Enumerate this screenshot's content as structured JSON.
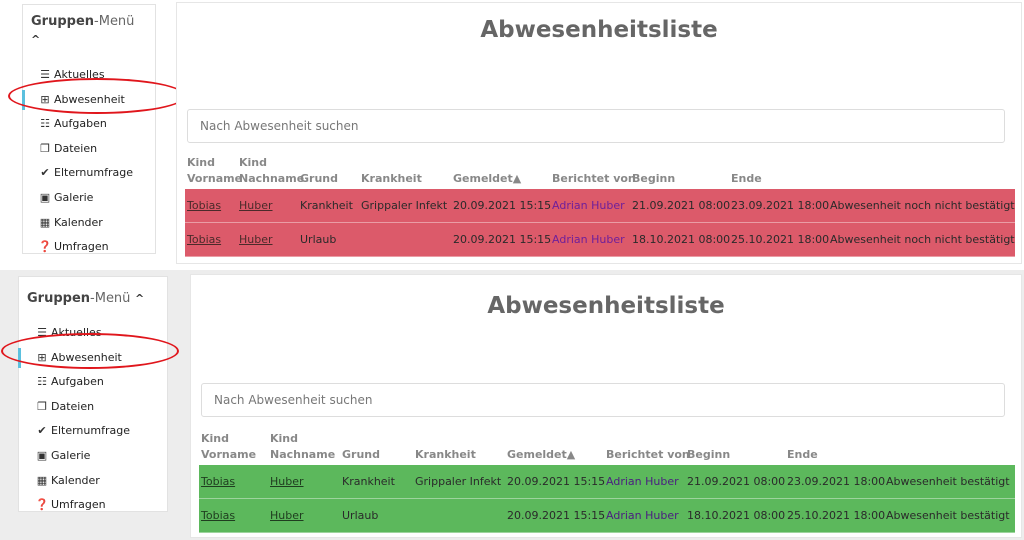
{
  "menu": {
    "title_bold": "Gruppen",
    "title_light": "-Menü",
    "caret": "^",
    "items": [
      {
        "icon": "list-icon",
        "glyph": "☰",
        "label": "Aktuelles"
      },
      {
        "icon": "medkit-icon",
        "glyph": "⊞",
        "label": "Abwesenheit"
      },
      {
        "icon": "tasks-icon",
        "glyph": "☷",
        "label": "Aufgaben"
      },
      {
        "icon": "files-icon",
        "glyph": "❐",
        "label": "Dateien"
      },
      {
        "icon": "check-icon",
        "glyph": "✔",
        "label": "Elternumfrage"
      },
      {
        "icon": "image-icon",
        "glyph": "▣",
        "label": "Galerie"
      },
      {
        "icon": "calendar-icon",
        "glyph": "▦",
        "label": "Kalender"
      },
      {
        "icon": "question-circle-icon",
        "glyph": "❓",
        "label": "Umfragen"
      }
    ]
  },
  "page_title": "Abwesenheitsliste",
  "search_placeholder": "Nach Abwesenheit suchen",
  "headers": {
    "first": "Kind\nVorname",
    "last": "Kind\nNachname",
    "reason": "Grund",
    "illness": "Krankheit",
    "reported": "Gemeldet▲",
    "reporter": "Berichtet von",
    "start": "Beginn",
    "end": "Ende"
  },
  "lists": [
    {
      "row_color": "#dc5a6a",
      "rows": [
        {
          "first": "Tobias",
          "last": "Huber",
          "reason": "Krankheit",
          "illness": "Grippaler Infekt",
          "reported": "20.09.2021 15:15",
          "reporter": "Adrian Huber",
          "start": "21.09.2021 08:00",
          "end": "23.09.2021 18:00",
          "status": "Abwesenheit noch nicht bestätigt"
        },
        {
          "first": "Tobias",
          "last": "Huber",
          "reason": "Urlaub",
          "illness": "",
          "reported": "20.09.2021 15:15",
          "reporter": "Adrian Huber",
          "start": "18.10.2021 08:00",
          "end": "25.10.2021 18:00",
          "status": "Abwesenheit noch nicht bestätigt"
        }
      ]
    },
    {
      "row_color": "#5cb85c",
      "rows": [
        {
          "first": "Tobias",
          "last": "Huber",
          "reason": "Krankheit",
          "illness": "Grippaler Infekt",
          "reported": "20.09.2021 15:15",
          "reporter": "Adrian Huber",
          "start": "21.09.2021 08:00",
          "end": "23.09.2021 18:00",
          "status": "Abwesenheit bestätigt"
        },
        {
          "first": "Tobias",
          "last": "Huber",
          "reason": "Urlaub",
          "illness": "",
          "reported": "20.09.2021 15:15",
          "reporter": "Adrian Huber",
          "start": "18.10.2021 08:00",
          "end": "25.10.2021 18:00",
          "status": "Abwesenheit bestätigt"
        }
      ]
    }
  ],
  "highlight_color": "#e0161c"
}
